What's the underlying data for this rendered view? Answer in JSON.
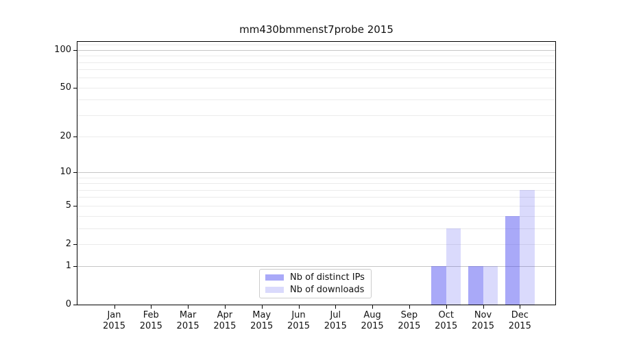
{
  "chart_data": {
    "type": "bar",
    "title": "mm430bmmenst7probe 2015",
    "categories": [
      "Jan",
      "Feb",
      "Mar",
      "Apr",
      "May",
      "Jun",
      "Jul",
      "Aug",
      "Sep",
      "Oct",
      "Nov",
      "Dec"
    ],
    "x_year": "2015",
    "series": [
      {
        "name": "Nb of distinct IPs",
        "color": "rgba(60,60,240,0.44)",
        "values": [
          0,
          0,
          0,
          0,
          0,
          0,
          0,
          0,
          0,
          1,
          1,
          4
        ]
      },
      {
        "name": "Nb of downloads",
        "color": "rgba(60,60,240,0.19)",
        "values": [
          0,
          0,
          0,
          0,
          0,
          0,
          0,
          0,
          0,
          3,
          1,
          7
        ]
      }
    ],
    "y_axis": {
      "scale": "log1p",
      "ticks": [
        100,
        50,
        20,
        10,
        5,
        2,
        1,
        0
      ],
      "range": [
        0,
        116
      ],
      "major_gridlines": [
        1,
        10,
        100
      ],
      "minor_gridlines": [
        2,
        3,
        4,
        5,
        6,
        7,
        8,
        9,
        20,
        30,
        40,
        50,
        60,
        70,
        80,
        90,
        110
      ],
      "major_grid_color": "#c6c6c6",
      "minor_grid_color": "#ebebeb"
    },
    "legend": {
      "position": "lower center",
      "entries": [
        "Nb of distinct IPs",
        "Nb of downloads"
      ]
    }
  }
}
